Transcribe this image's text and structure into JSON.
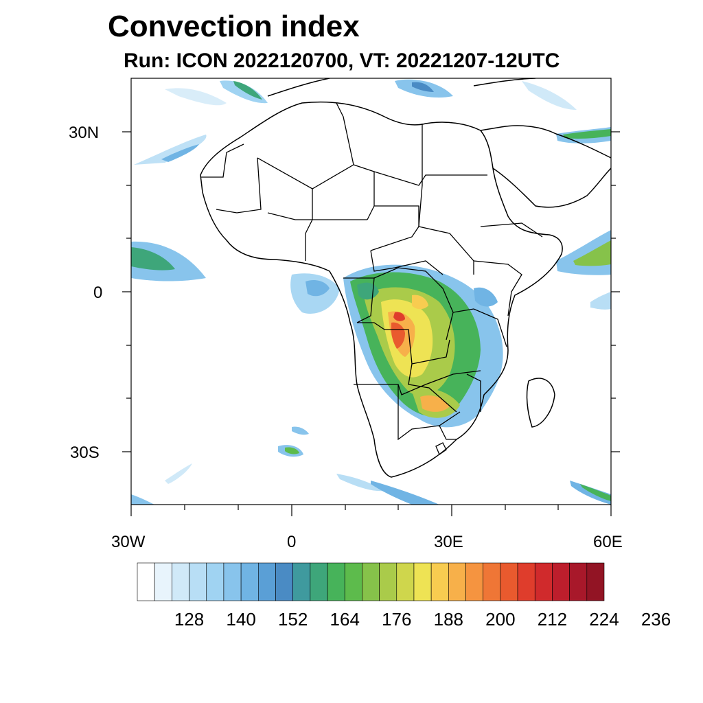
{
  "title": "Convection index",
  "subtitle": "Run: ICON 2022120700,  VT: 20221207-12UTC",
  "map": {
    "region": "Africa",
    "lon_range": [
      -30,
      60
    ],
    "lat_range": [
      -40,
      40
    ],
    "lat_ticks": [
      {
        "value": 30,
        "label": "30N"
      },
      {
        "value": 0,
        "label": "0"
      },
      {
        "value": -30,
        "label": "30S"
      }
    ],
    "lon_ticks": [
      {
        "value": -30,
        "label": "30W"
      },
      {
        "value": 0,
        "label": "0"
      },
      {
        "value": 30,
        "label": "30E"
      },
      {
        "value": 60,
        "label": "60E"
      }
    ]
  },
  "colorbar": {
    "colors": [
      "#ffffff",
      "#e8f4fc",
      "#d0e9f8",
      "#b8def5",
      "#a0d3f2",
      "#88c4ec",
      "#70b4e4",
      "#5a9fd6",
      "#4a8bc4",
      "#3f9a9e",
      "#3ea67a",
      "#47b35a",
      "#5dbb4c",
      "#86c24a",
      "#aacb4a",
      "#cfd64c",
      "#eee354",
      "#f8cc50",
      "#f7b04a",
      "#f59440",
      "#ef7636",
      "#e95a2e",
      "#df3d2c",
      "#d02a2c",
      "#bd1e2c",
      "#a8182a",
      "#921424"
    ],
    "labels": [
      "128",
      "140",
      "152",
      "164",
      "176",
      "188",
      "200",
      "212",
      "224",
      "236"
    ]
  }
}
